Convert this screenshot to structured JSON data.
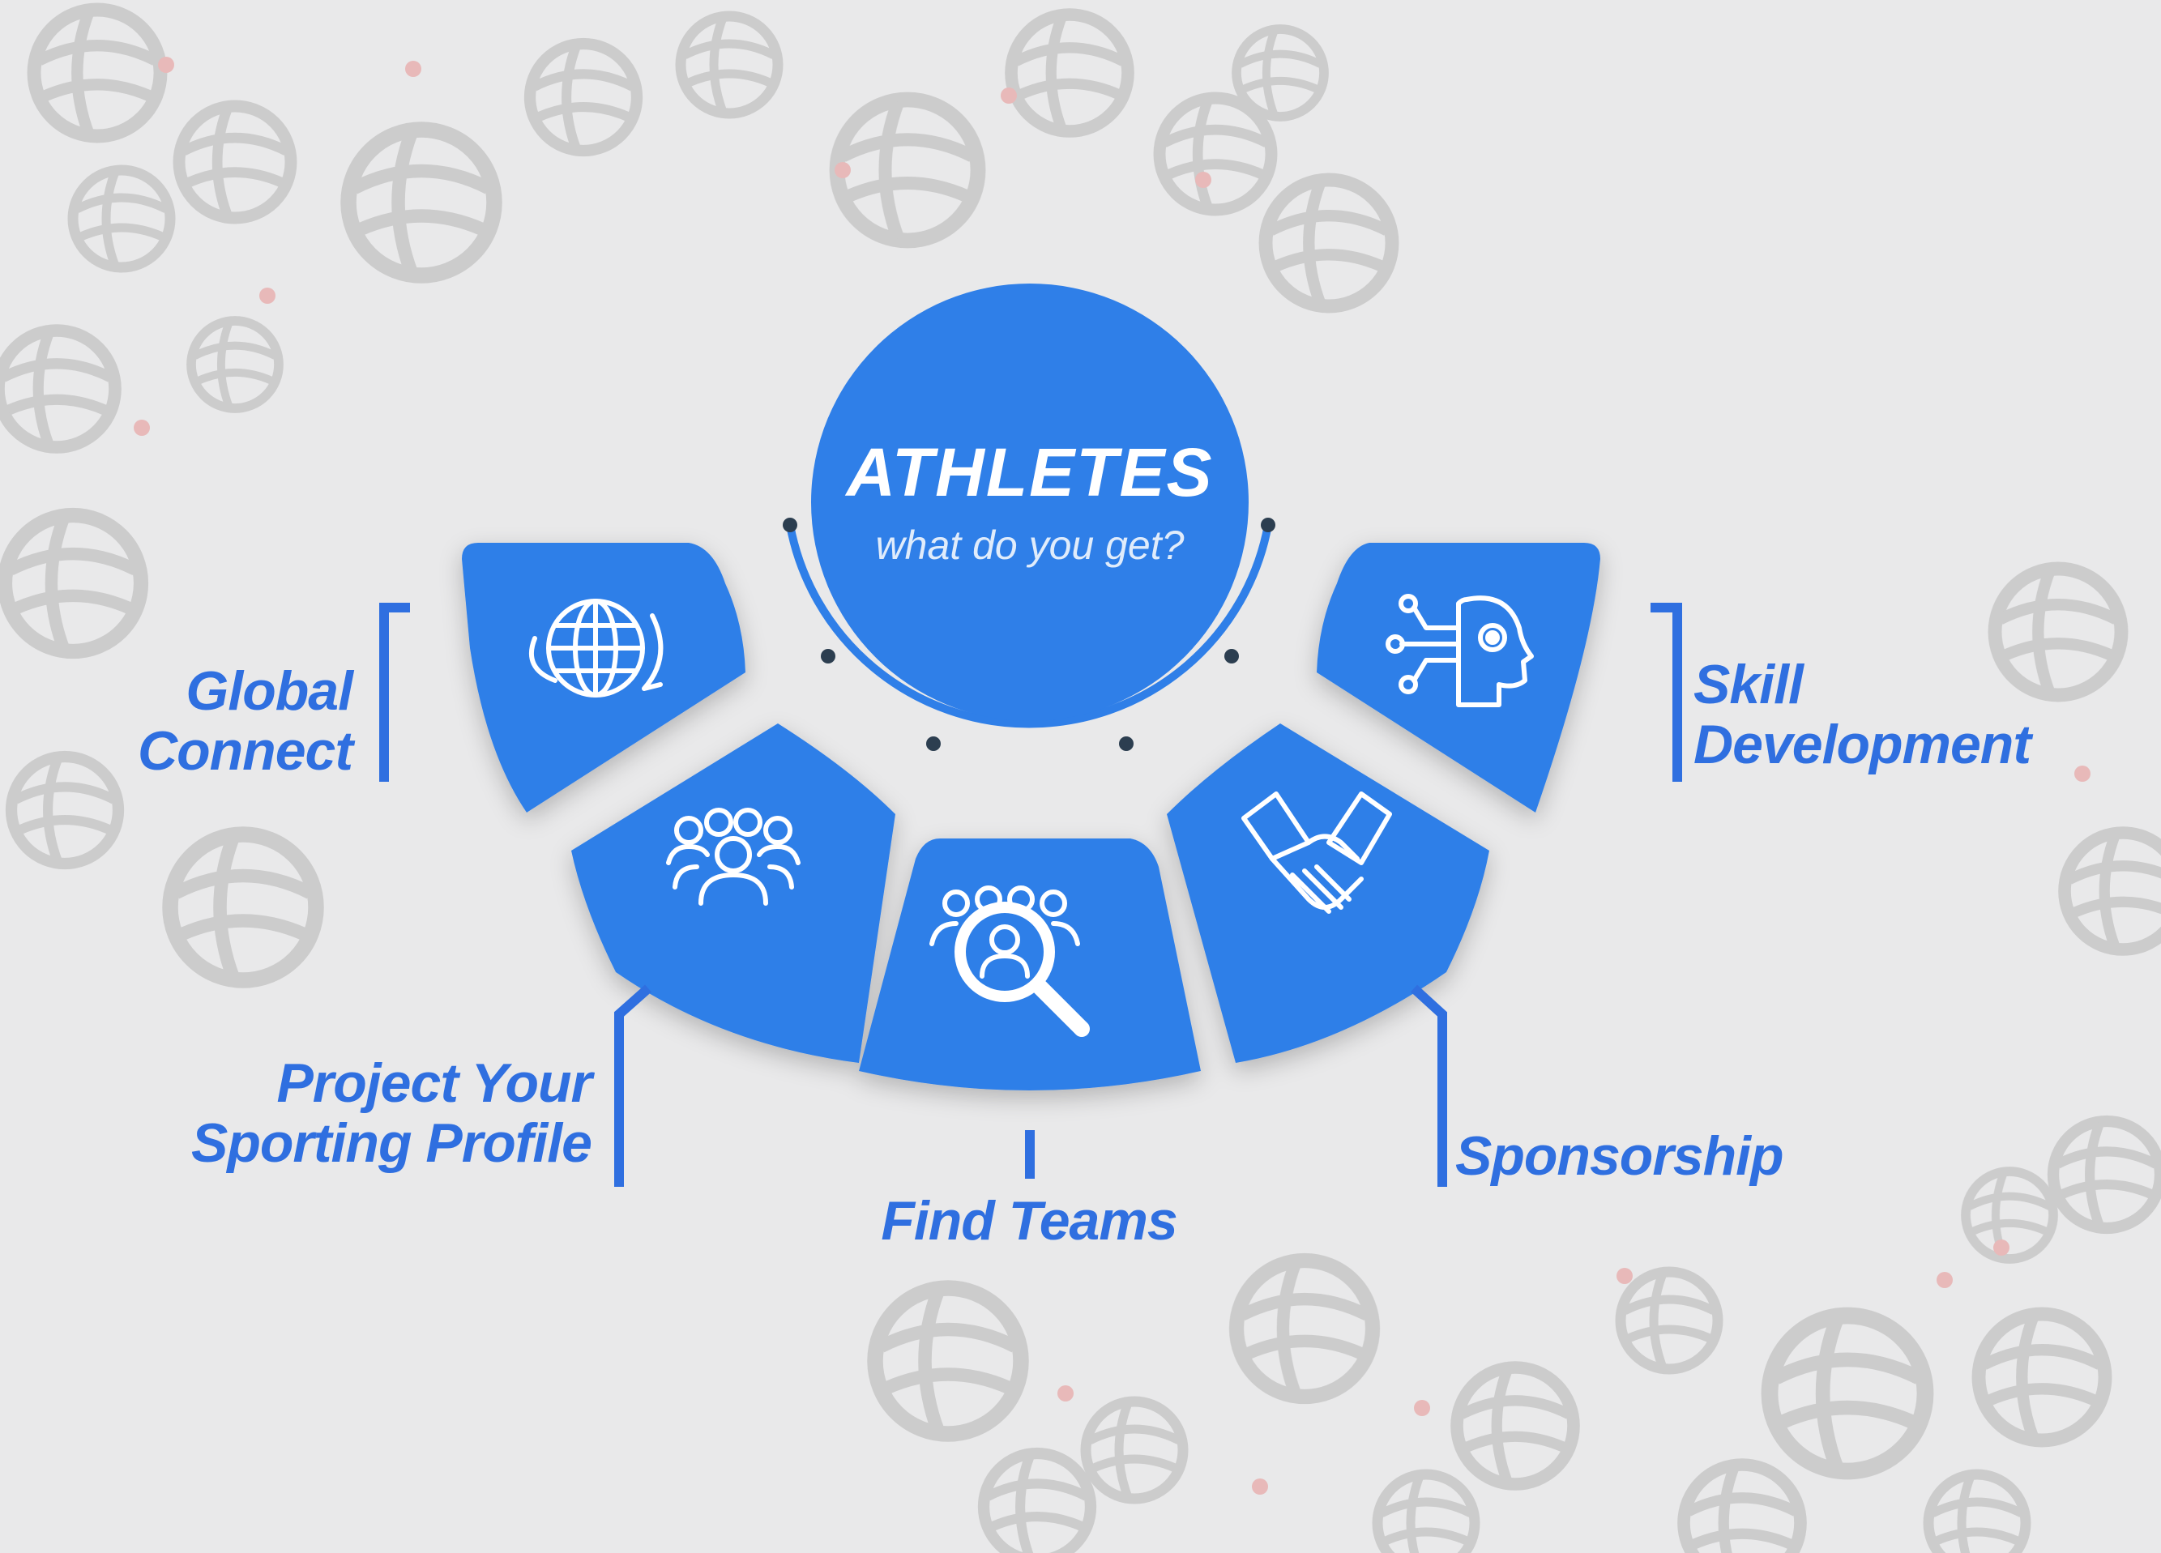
{
  "colors": {
    "primary": "#2f7fe8",
    "text": "#2f6fe0",
    "background": "#e9e9ea",
    "pattern": "#c9c9c9",
    "pattern_dot": "#e8b4b4",
    "connector": "#2c3e50"
  },
  "center": {
    "title": "ATHLETES",
    "subtitle": "what do you get?"
  },
  "segments": [
    {
      "label_lines": [
        "Global",
        "Connect"
      ],
      "icon": "globe-icon"
    },
    {
      "label_lines": [
        "Project Your",
        "Sporting Profile"
      ],
      "icon": "team-group-icon"
    },
    {
      "label_lines": [
        "Find Teams"
      ],
      "icon": "search-people-icon"
    },
    {
      "label_lines": [
        "Sponsorship"
      ],
      "icon": "handshake-icon"
    },
    {
      "label_lines": [
        "Skill",
        "Development"
      ],
      "icon": "mind-gear-icon"
    }
  ]
}
